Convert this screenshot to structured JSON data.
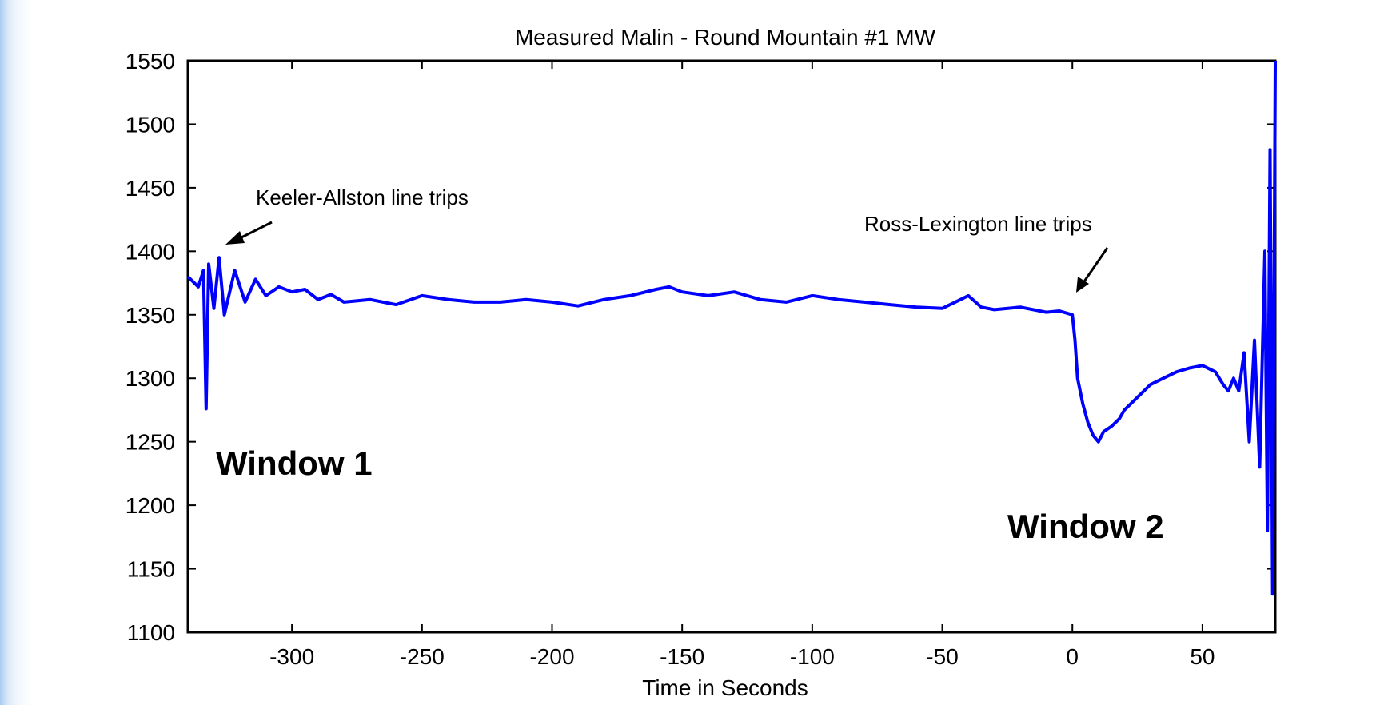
{
  "chart_data": {
    "type": "line",
    "title": "Measured Malin - Round Mountain #1 MW",
    "xlabel": "Time in Seconds",
    "ylabel": "",
    "xlim": [
      -340,
      78
    ],
    "ylim": [
      1100,
      1550
    ],
    "xticks": [
      -300,
      -250,
      -200,
      -150,
      -100,
      -50,
      0,
      50
    ],
    "yticks": [
      1100,
      1150,
      1200,
      1250,
      1300,
      1350,
      1400,
      1450,
      1500,
      1550
    ],
    "grid": false,
    "series_color": "#0000ff",
    "series": [
      {
        "x": [
          -340,
          -336,
          -334,
          -333,
          -332,
          -330,
          -328,
          -326,
          -322,
          -318,
          -314,
          -310,
          -305,
          -300,
          -295,
          -290,
          -285,
          -280,
          -270,
          -260,
          -250,
          -240,
          -230,
          -220,
          -210,
          -200,
          -190,
          -180,
          -170,
          -160,
          -155,
          -150,
          -140,
          -130,
          -120,
          -110,
          -100,
          -90,
          -80,
          -70,
          -60,
          -50,
          -45,
          -40,
          -35,
          -30,
          -20,
          -10,
          -5,
          0,
          1,
          2,
          4,
          6,
          8,
          10,
          12,
          15,
          18,
          20,
          25,
          30,
          35,
          40,
          45,
          50,
          55,
          58,
          60,
          62,
          64,
          66,
          68,
          70,
          72,
          74,
          75,
          76,
          77,
          78
        ],
        "y": [
          1380,
          1372,
          1385,
          1276,
          1390,
          1355,
          1395,
          1350,
          1385,
          1360,
          1378,
          1365,
          1372,
          1368,
          1370,
          1362,
          1366,
          1360,
          1362,
          1358,
          1365,
          1362,
          1360,
          1360,
          1362,
          1360,
          1357,
          1362,
          1365,
          1370,
          1372,
          1368,
          1365,
          1368,
          1362,
          1360,
          1365,
          1362,
          1360,
          1358,
          1356,
          1355,
          1360,
          1365,
          1356,
          1354,
          1356,
          1352,
          1353,
          1350,
          1330,
          1300,
          1280,
          1265,
          1255,
          1250,
          1258,
          1262,
          1268,
          1275,
          1285,
          1295,
          1300,
          1305,
          1308,
          1310,
          1305,
          1295,
          1290,
          1300,
          1290,
          1320,
          1250,
          1330,
          1230,
          1400,
          1180,
          1480,
          1130,
          1550
        ]
      }
    ],
    "annotations": [
      {
        "text": "Keeler-Allston line trips",
        "x": -326,
        "y": 1398
      },
      {
        "text": "Ross-Lexington line trips",
        "x": 2,
        "y": 1365
      }
    ],
    "regions": [
      {
        "text": "Window 1"
      },
      {
        "text": "Window 2"
      }
    ]
  }
}
